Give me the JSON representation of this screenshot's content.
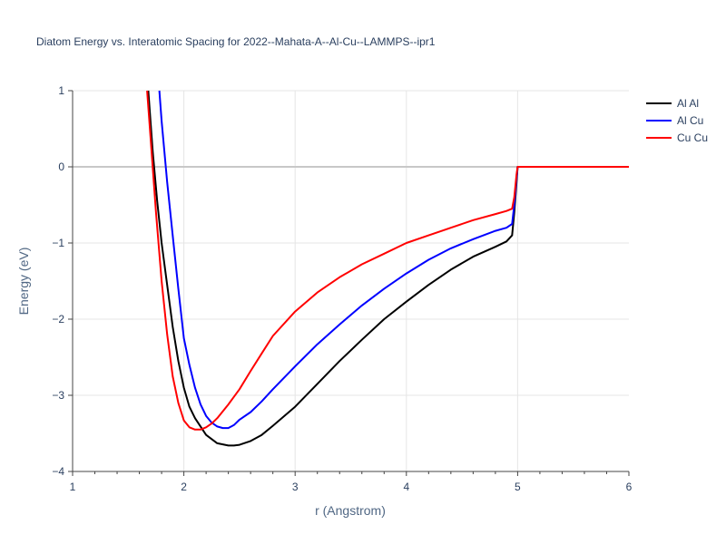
{
  "chart_data": {
    "type": "line",
    "title": "Diatom Energy vs. Interatomic Spacing for 2022--Mahata-A--Al-Cu--LAMMPS--ipr1",
    "xlabel": "r (Angstrom)",
    "ylabel": "Energy (eV)",
    "xlim": [
      1,
      6
    ],
    "ylim": [
      -4,
      1
    ],
    "xticks": [
      "1",
      "2",
      "3",
      "4",
      "5",
      "6"
    ],
    "yticks": [
      "1",
      "0",
      "−1",
      "−2",
      "−3",
      "−4"
    ],
    "grid": true,
    "legend_position": "top-right",
    "series": [
      {
        "name": "Al Al",
        "color": "#000000",
        "x": [
          1.68,
          1.72,
          1.76,
          1.8,
          1.85,
          1.9,
          1.95,
          2.0,
          2.05,
          2.1,
          2.2,
          2.3,
          2.4,
          2.45,
          2.5,
          2.6,
          2.7,
          2.8,
          3.0,
          3.2,
          3.4,
          3.6,
          3.8,
          4.0,
          4.2,
          4.4,
          4.6,
          4.8,
          4.9,
          4.95,
          4.97,
          4.99,
          5.0,
          6.0
        ],
        "y": [
          1.0,
          0.2,
          -0.45,
          -1.0,
          -1.55,
          -2.1,
          -2.55,
          -2.9,
          -3.15,
          -3.3,
          -3.52,
          -3.63,
          -3.66,
          -3.66,
          -3.65,
          -3.6,
          -3.52,
          -3.4,
          -3.15,
          -2.85,
          -2.55,
          -2.27,
          -2.0,
          -1.77,
          -1.55,
          -1.35,
          -1.18,
          -1.05,
          -0.98,
          -0.9,
          -0.6,
          -0.2,
          0.0,
          0.0
        ]
      },
      {
        "name": "Al Cu",
        "color": "#0000ff",
        "x": [
          1.78,
          1.8,
          1.85,
          1.9,
          1.95,
          2.0,
          2.05,
          2.1,
          2.15,
          2.2,
          2.25,
          2.3,
          2.35,
          2.4,
          2.45,
          2.5,
          2.6,
          2.7,
          2.8,
          3.0,
          3.2,
          3.4,
          3.6,
          3.8,
          4.0,
          4.2,
          4.4,
          4.6,
          4.8,
          4.9,
          4.95,
          4.97,
          4.99,
          5.0,
          6.0
        ],
        "y": [
          1.0,
          0.6,
          -0.2,
          -0.9,
          -1.6,
          -2.25,
          -2.6,
          -2.9,
          -3.12,
          -3.27,
          -3.36,
          -3.41,
          -3.43,
          -3.43,
          -3.39,
          -3.32,
          -3.22,
          -3.08,
          -2.92,
          -2.62,
          -2.33,
          -2.07,
          -1.82,
          -1.6,
          -1.4,
          -1.22,
          -1.07,
          -0.95,
          -0.84,
          -0.8,
          -0.75,
          -0.5,
          -0.15,
          0.0,
          0.0
        ]
      },
      {
        "name": "Cu Cu",
        "color": "#ff0000",
        "x": [
          1.67,
          1.7,
          1.75,
          1.8,
          1.85,
          1.9,
          1.95,
          2.0,
          2.05,
          2.1,
          2.15,
          2.2,
          2.25,
          2.3,
          2.4,
          2.5,
          2.6,
          2.7,
          2.8,
          3.0,
          3.2,
          3.4,
          3.6,
          3.8,
          4.0,
          4.2,
          4.4,
          4.6,
          4.8,
          4.9,
          4.95,
          4.97,
          4.99,
          5.0,
          6.0
        ],
        "y": [
          1.0,
          0.4,
          -0.6,
          -1.5,
          -2.2,
          -2.75,
          -3.1,
          -3.33,
          -3.42,
          -3.45,
          -3.45,
          -3.42,
          -3.37,
          -3.3,
          -3.12,
          -2.92,
          -2.68,
          -2.45,
          -2.22,
          -1.9,
          -1.65,
          -1.45,
          -1.28,
          -1.14,
          -1.0,
          -0.9,
          -0.8,
          -0.7,
          -0.62,
          -0.58,
          -0.55,
          -0.4,
          -0.1,
          0.0,
          0.0
        ]
      }
    ]
  }
}
